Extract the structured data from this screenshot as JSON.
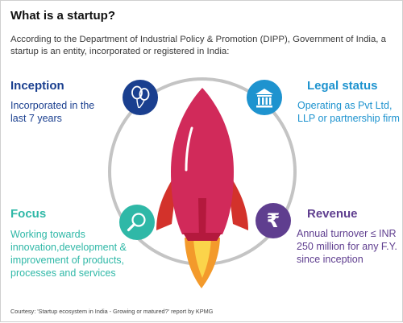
{
  "title": "What is a startup?",
  "intro": "According to the Department of Industrial Policy & Promotion (DIPP), Government of India, a startup is an entity, incorporated or registered in India:",
  "criteria": [
    {
      "label": "Inception",
      "text": "Incorporated in the last 7 years",
      "icon": "balloons-icon",
      "color": "#1a3f8f",
      "text_color": "#1a3f8f"
    },
    {
      "label": "Legal status",
      "text": "Operating as Pvt Ltd, LLP or partnership firm",
      "icon": "bank-building-icon",
      "color": "#1e93cf",
      "text_color": "#1e93cf"
    },
    {
      "label": "Focus",
      "text": "Working towards innovation,development & improvement of products, processes and services",
      "icon": "magnifier-icon",
      "color": "#2fb8a7",
      "text_color": "#2fb8a7"
    },
    {
      "label": "Revenue",
      "text": "Annual turnover ≤ INR 250 million for any F.Y. since inception",
      "icon": "rupee-icon",
      "color": "#5f3e8f",
      "text_color": "#5f3e8f"
    }
  ],
  "rupee_symbol": "₹",
  "footer": "Courtesy: 'Startup ecosystem in India - Growing or matured?' report by KPMG",
  "colors": {
    "rocket_body": "#d12a5a",
    "rocket_fins": "#d3322b",
    "rocket_nozzle": "#b4193d",
    "flame_outer": "#f39a2b",
    "flame_inner": "#fbd44a",
    "ring": "#c4c4c4"
  }
}
